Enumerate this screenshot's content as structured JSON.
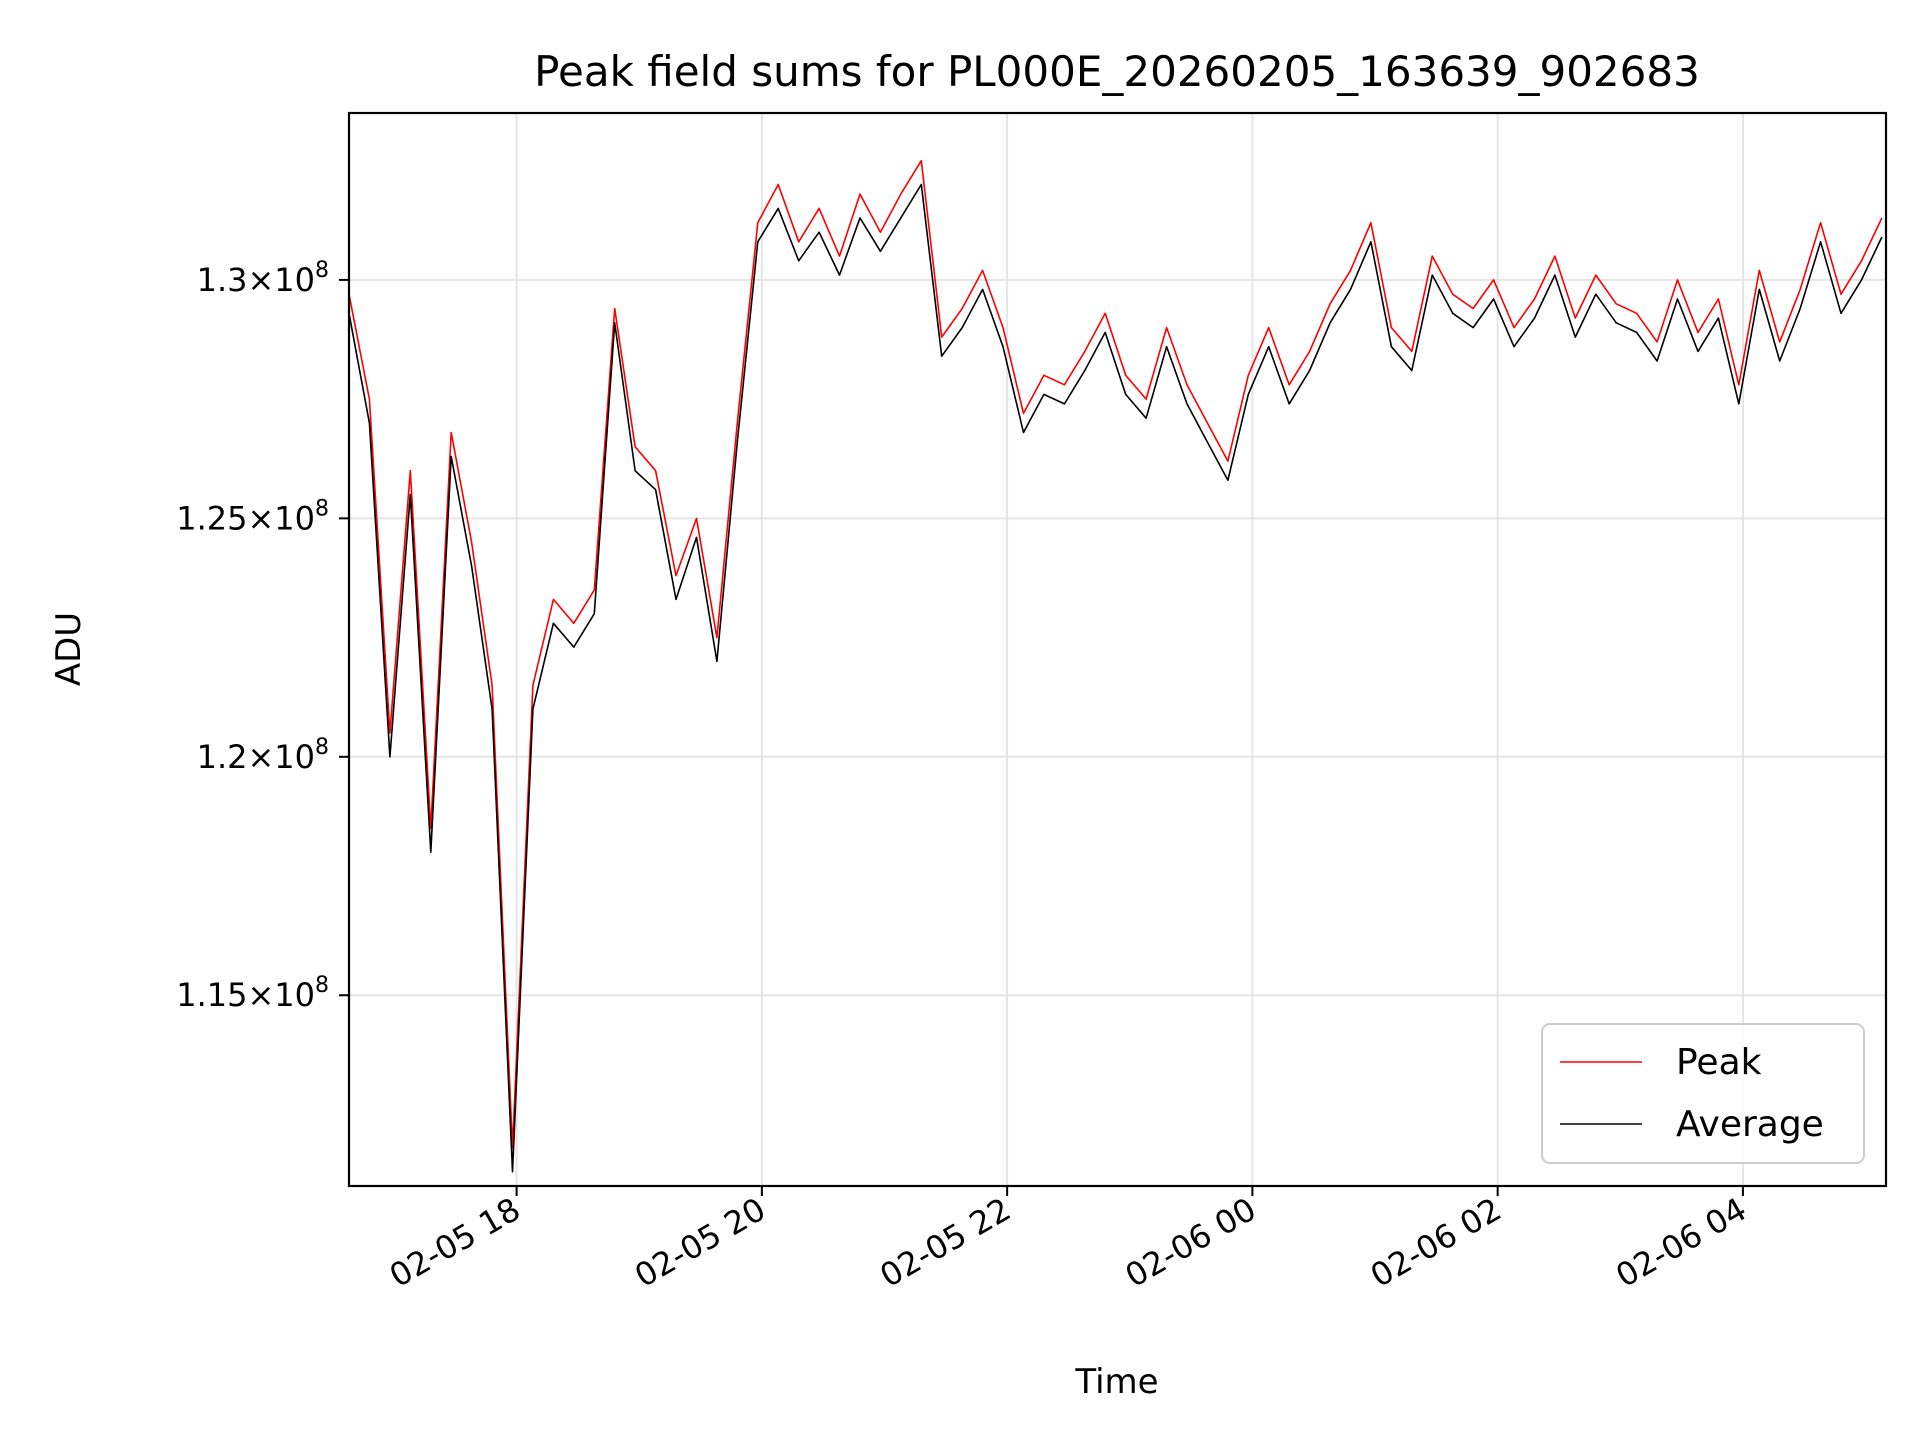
{
  "chart_data": {
    "type": "line",
    "title": "Peak field sums for PL000E_20260205_163639_902683",
    "xlabel": "Time",
    "ylabel": "ADU",
    "xlim": [
      "2026-02-05 16:38",
      "2026-02-06 05:10"
    ],
    "ylim": [
      111000000,
      133500000
    ],
    "x_ticks": [
      "02-05 18",
      "02-05 20",
      "02-05 22",
      "02-06 00",
      "02-06 02",
      "02-06 04"
    ],
    "x_tick_values": [
      "2026-02-05 18:00",
      "2026-02-05 20:00",
      "2026-02-05 22:00",
      "2026-02-06 00:00",
      "2026-02-06 02:00",
      "2026-02-06 04:00"
    ],
    "y_ticks": [
      115000000,
      120000000,
      125000000,
      130000000
    ],
    "y_tick_labels": [
      {
        "mantissa": "1.15",
        "base": "10",
        "exp": "8"
      },
      {
        "mantissa": "1.2",
        "base": "10",
        "exp": "8"
      },
      {
        "mantissa": "1.25",
        "base": "10",
        "exp": "8"
      },
      {
        "mantissa": "1.3",
        "base": "10",
        "exp": "8"
      }
    ],
    "grid": true,
    "legend_position": "lower-right",
    "series": [
      {
        "name": "Peak",
        "color": "#ff0000",
        "x": [
          "2026-02-05 16:38",
          "2026-02-05 16:48",
          "2026-02-05 16:58",
          "2026-02-05 17:08",
          "2026-02-05 17:18",
          "2026-02-05 17:28",
          "2026-02-05 17:38",
          "2026-02-05 17:48",
          "2026-02-05 17:58",
          "2026-02-05 18:08",
          "2026-02-05 18:18",
          "2026-02-05 18:28",
          "2026-02-05 18:38",
          "2026-02-05 18:48",
          "2026-02-05 18:58",
          "2026-02-05 19:08",
          "2026-02-05 19:18",
          "2026-02-05 19:28",
          "2026-02-05 19:38",
          "2026-02-05 19:48",
          "2026-02-05 19:58",
          "2026-02-05 20:08",
          "2026-02-05 20:18",
          "2026-02-05 20:28",
          "2026-02-05 20:38",
          "2026-02-05 20:48",
          "2026-02-05 20:58",
          "2026-02-05 21:08",
          "2026-02-05 21:18",
          "2026-02-05 21:28",
          "2026-02-05 21:38",
          "2026-02-05 21:48",
          "2026-02-05 21:58",
          "2026-02-05 22:08",
          "2026-02-05 22:18",
          "2026-02-05 22:28",
          "2026-02-05 22:38",
          "2026-02-05 22:48",
          "2026-02-05 22:58",
          "2026-02-05 23:08",
          "2026-02-05 23:18",
          "2026-02-05 23:28",
          "2026-02-05 23:38",
          "2026-02-05 23:48",
          "2026-02-05 23:58",
          "2026-02-06 00:08",
          "2026-02-06 00:18",
          "2026-02-06 00:28",
          "2026-02-06 00:38",
          "2026-02-06 00:48",
          "2026-02-06 00:58",
          "2026-02-06 01:08",
          "2026-02-06 01:18",
          "2026-02-06 01:28",
          "2026-02-06 01:38",
          "2026-02-06 01:48",
          "2026-02-06 01:58",
          "2026-02-06 02:08",
          "2026-02-06 02:18",
          "2026-02-06 02:28",
          "2026-02-06 02:38",
          "2026-02-06 02:48",
          "2026-02-06 02:58",
          "2026-02-06 03:08",
          "2026-02-06 03:18",
          "2026-02-06 03:28",
          "2026-02-06 03:38",
          "2026-02-06 03:48",
          "2026-02-06 03:58",
          "2026-02-06 04:08",
          "2026-02-06 04:18",
          "2026-02-06 04:28",
          "2026-02-06 04:38",
          "2026-02-06 04:48",
          "2026-02-06 04:58",
          "2026-02-06 05:08"
        ],
        "y": [
          129700000,
          127500000,
          120500000,
          126000000,
          118500000,
          126800000,
          124500000,
          121500000,
          111800000,
          121500000,
          123300000,
          122800000,
          123500000,
          129400000,
          126500000,
          126000000,
          123800000,
          125000000,
          122500000,
          127000000,
          131200000,
          132000000,
          130800000,
          131500000,
          130500000,
          131800000,
          131000000,
          131800000,
          132500000,
          128800000,
          129400000,
          130200000,
          129000000,
          127200000,
          128000000,
          127800000,
          128500000,
          129300000,
          128000000,
          127500000,
          129000000,
          127800000,
          127000000,
          126200000,
          128000000,
          129000000,
          127800000,
          128500000,
          129500000,
          130200000,
          131200000,
          129000000,
          128500000,
          130500000,
          129700000,
          129400000,
          130000000,
          129000000,
          129600000,
          130500000,
          129200000,
          130100000,
          129500000,
          129300000,
          128700000,
          130000000,
          128900000,
          129600000,
          127800000,
          130200000,
          128700000,
          129800000,
          131200000,
          129700000,
          130400000,
          131300000
        ]
      },
      {
        "name": "Average",
        "color": "#000000",
        "x": [
          "2026-02-05 16:38",
          "2026-02-05 16:48",
          "2026-02-05 16:58",
          "2026-02-05 17:08",
          "2026-02-05 17:18",
          "2026-02-05 17:28",
          "2026-02-05 17:38",
          "2026-02-05 17:48",
          "2026-02-05 17:58",
          "2026-02-05 18:08",
          "2026-02-05 18:18",
          "2026-02-05 18:28",
          "2026-02-05 18:38",
          "2026-02-05 18:48",
          "2026-02-05 18:58",
          "2026-02-05 19:08",
          "2026-02-05 19:18",
          "2026-02-05 19:28",
          "2026-02-05 19:38",
          "2026-02-05 19:48",
          "2026-02-05 19:58",
          "2026-02-05 20:08",
          "2026-02-05 20:18",
          "2026-02-05 20:28",
          "2026-02-05 20:38",
          "2026-02-05 20:48",
          "2026-02-05 20:58",
          "2026-02-05 21:08",
          "2026-02-05 21:18",
          "2026-02-05 21:28",
          "2026-02-05 21:38",
          "2026-02-05 21:48",
          "2026-02-05 21:58",
          "2026-02-05 22:08",
          "2026-02-05 22:18",
          "2026-02-05 22:28",
          "2026-02-05 22:38",
          "2026-02-05 22:48",
          "2026-02-05 22:58",
          "2026-02-05 23:08",
          "2026-02-05 23:18",
          "2026-02-05 23:28",
          "2026-02-05 23:38",
          "2026-02-05 23:48",
          "2026-02-05 23:58",
          "2026-02-06 00:08",
          "2026-02-06 00:18",
          "2026-02-06 00:28",
          "2026-02-06 00:38",
          "2026-02-06 00:48",
          "2026-02-06 00:58",
          "2026-02-06 01:08",
          "2026-02-06 01:18",
          "2026-02-06 01:28",
          "2026-02-06 01:38",
          "2026-02-06 01:48",
          "2026-02-06 01:58",
          "2026-02-06 02:08",
          "2026-02-06 02:18",
          "2026-02-06 02:28",
          "2026-02-06 02:38",
          "2026-02-06 02:48",
          "2026-02-06 02:58",
          "2026-02-06 03:08",
          "2026-02-06 03:18",
          "2026-02-06 03:28",
          "2026-02-06 03:38",
          "2026-02-06 03:48",
          "2026-02-06 03:58",
          "2026-02-06 04:08",
          "2026-02-06 04:18",
          "2026-02-06 04:28",
          "2026-02-06 04:38",
          "2026-02-06 04:48",
          "2026-02-06 04:58",
          "2026-02-06 05:08"
        ],
        "y": [
          129300000,
          127000000,
          120000000,
          125500000,
          118000000,
          126300000,
          124000000,
          121000000,
          111300000,
          121000000,
          122800000,
          122300000,
          123000000,
          129100000,
          126000000,
          125600000,
          123300000,
          124600000,
          122000000,
          126600000,
          130800000,
          131500000,
          130400000,
          131000000,
          130100000,
          131300000,
          130600000,
          131300000,
          132000000,
          128400000,
          129000000,
          129800000,
          128600000,
          126800000,
          127600000,
          127400000,
          128100000,
          128900000,
          127600000,
          127100000,
          128600000,
          127400000,
          126600000,
          125800000,
          127600000,
          128600000,
          127400000,
          128100000,
          129100000,
          129800000,
          130800000,
          128600000,
          128100000,
          130100000,
          129300000,
          129000000,
          129600000,
          128600000,
          129200000,
          130100000,
          128800000,
          129700000,
          129100000,
          128900000,
          128300000,
          129600000,
          128500000,
          129200000,
          127400000,
          129800000,
          128300000,
          129400000,
          130800000,
          129300000,
          130000000,
          130900000
        ]
      }
    ]
  }
}
